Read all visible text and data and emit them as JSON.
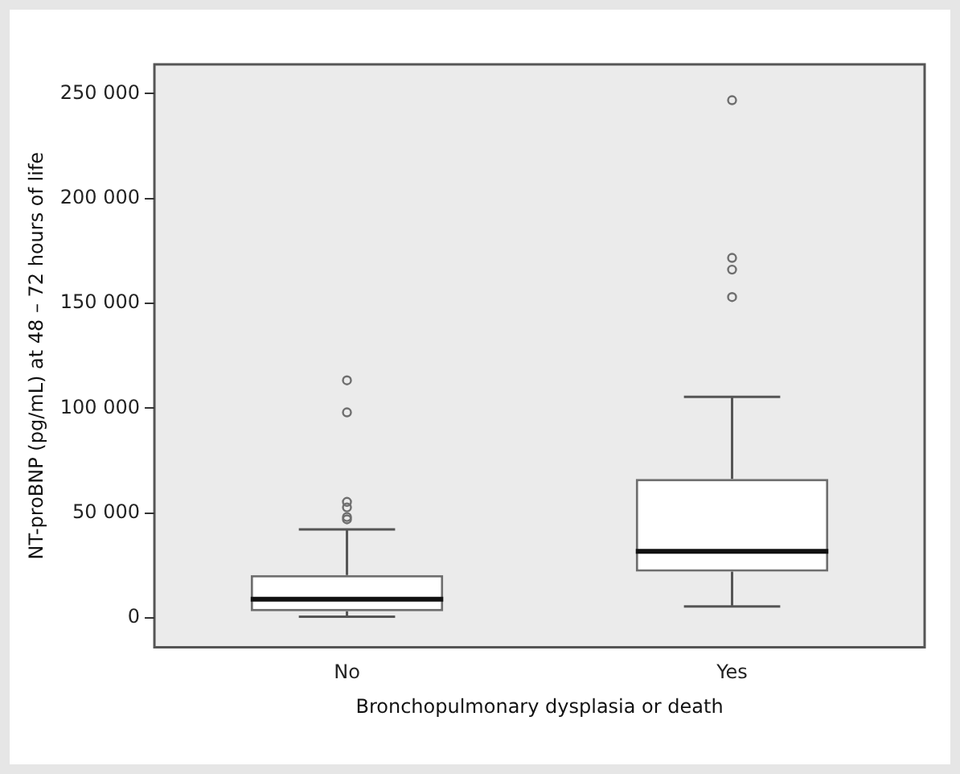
{
  "chart_data": {
    "type": "box",
    "xlabel": "Bronchopulmonary dysplasia or death",
    "ylabel": "NT-proBNP (pg/mL) at 48 – 72 hours of life",
    "categories": [
      "No",
      "Yes"
    ],
    "boxes": [
      {
        "low": 500,
        "q1": 3100,
        "median": 8900,
        "q3": 20400,
        "high": 42200,
        "outliers": [
          47000,
          48100,
          52700,
          55300,
          98000,
          113300
        ]
      },
      {
        "low": 5400,
        "q1": 22000,
        "median": 31700,
        "q3": 66300,
        "high": 105400,
        "outliers": [
          153000,
          166100,
          171700,
          246900
        ]
      }
    ],
    "color": "#6e6e6e",
    "ylim": [
      -14000,
      264000
    ],
    "yticks": [
      {
        "value": 0,
        "label": "0"
      },
      {
        "value": 50000,
        "label": "50 000"
      },
      {
        "value": 100000,
        "label": "100 000"
      },
      {
        "value": 150000,
        "label": "150 000"
      },
      {
        "value": 200000,
        "label": "200 000"
      },
      {
        "value": 250000,
        "label": "250 000"
      }
    ],
    "grid": false,
    "legend": false
  }
}
